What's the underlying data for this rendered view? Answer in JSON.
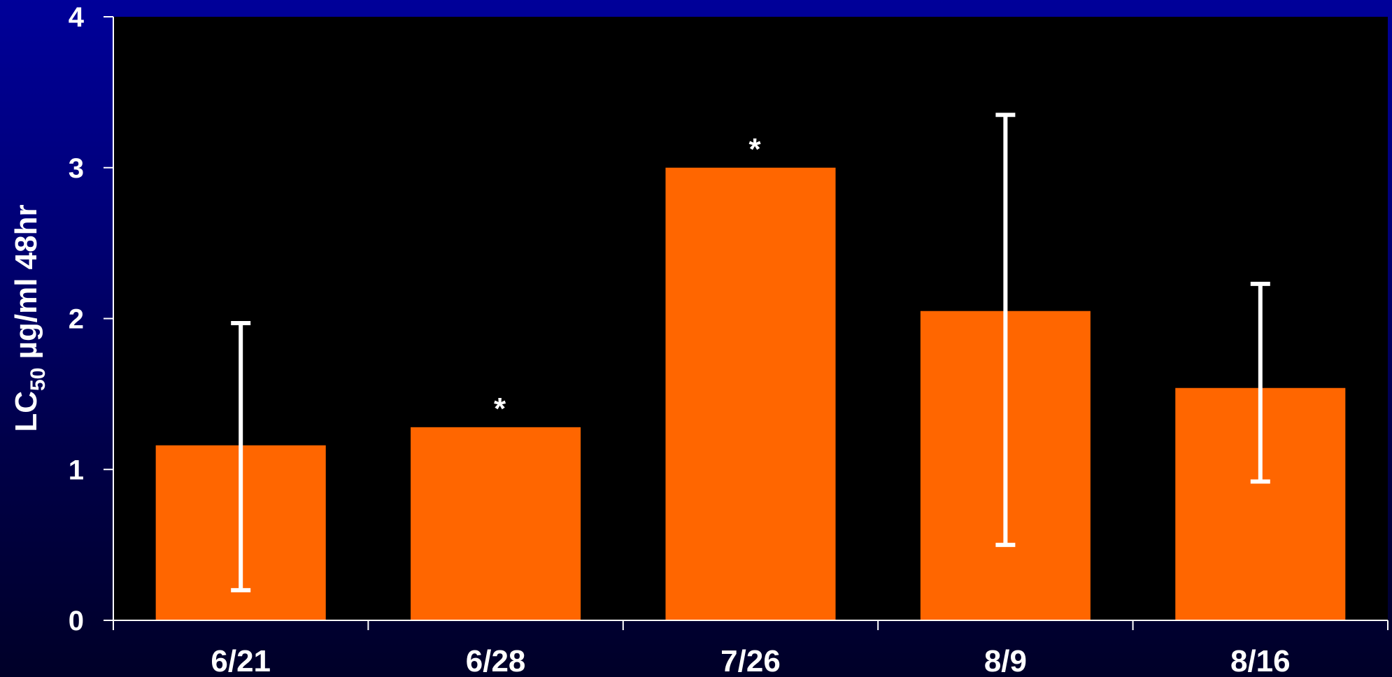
{
  "chart_data": {
    "type": "bar",
    "categories": [
      "6/21",
      "6/28",
      "7/26",
      "8/9",
      "8/16"
    ],
    "values": [
      1.16,
      1.28,
      3.0,
      2.05,
      1.54
    ],
    "error_low": [
      0.2,
      null,
      null,
      0.5,
      0.92
    ],
    "error_high": [
      1.97,
      null,
      null,
      3.35,
      2.23
    ],
    "annotations": [
      "",
      "*",
      "*",
      "",
      ""
    ],
    "ylim": [
      0,
      4
    ],
    "yticks": [
      "0",
      "1",
      "2",
      "3",
      "4"
    ],
    "ylabel": {
      "main": "LC",
      "sub": "50",
      "rest": " µg/ml 48hr"
    },
    "colors": {
      "bar": "#ff6600",
      "plot_bg": "#000000",
      "axis": "#ffffff",
      "error": "#ffffff"
    },
    "grid": false
  }
}
